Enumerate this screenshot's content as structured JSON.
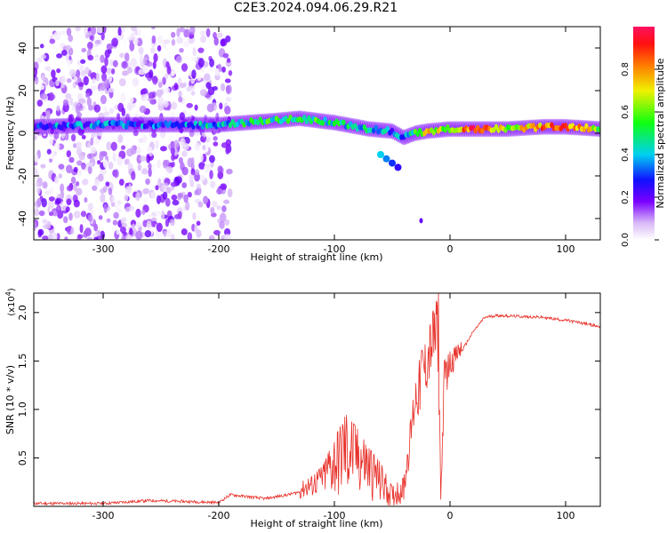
{
  "title": "C2E3.2024.094.06.29.R21",
  "chart_data": [
    {
      "type": "heatmap",
      "xlabel": "Height of straight line (km)",
      "ylabel": "Frequency (Hz)",
      "xlim": [
        -360,
        130
      ],
      "ylim": [
        -50,
        50
      ],
      "x_ticks": [
        -300,
        -200,
        -100,
        0,
        100
      ],
      "y_ticks": [
        -40,
        -20,
        0,
        20,
        40
      ],
      "colorbar": {
        "label": "Normalized spectral amplitude",
        "range": [
          0,
          1
        ],
        "ticks": [
          "0.0",
          "0.2",
          "0.4",
          "0.6",
          "0.8"
        ],
        "tick_values": [
          0,
          0.2,
          0.4,
          0.6,
          0.8
        ]
      },
      "main_band": {
        "x": [
          -360,
          -300,
          -250,
          -200,
          -150,
          -130,
          -100,
          -70,
          -50,
          -40,
          -30,
          -20,
          0,
          20,
          50,
          80,
          100,
          130
        ],
        "frequency": [
          3,
          4,
          4,
          4,
          6,
          7,
          5,
          2,
          1,
          -2,
          0,
          1,
          2,
          2,
          2,
          3,
          3,
          2
        ],
        "amplitude": [
          0.3,
          0.35,
          0.3,
          0.4,
          0.5,
          0.55,
          0.45,
          0.4,
          0.35,
          0.3,
          0.5,
          0.7,
          0.6,
          0.9,
          0.65,
          0.8,
          0.85,
          0.6
        ]
      },
      "secondary_branch": {
        "x": [
          -60,
          -55,
          -50,
          -45
        ],
        "frequency": [
          -10,
          -12,
          -14,
          -16
        ],
        "amplitude": [
          0.4,
          0.35,
          0.3,
          0.25
        ]
      },
      "outlier_points": [
        {
          "x": -25,
          "frequency": -41,
          "amplitude": 0.2
        }
      ],
      "noise_region": {
        "x": [
          -360,
          -190
        ],
        "frequency": [
          -50,
          50
        ],
        "amplitude_max": 0.2
      }
    },
    {
      "type": "line",
      "xlabel": "Height of straight line (km)",
      "ylabel": "SNR (10 * v/v)",
      "y_scale_label": "(x10",
      "y_scale_exp": "4",
      "y_scale_close": ")",
      "xlim": [
        -360,
        130
      ],
      "ylim": [
        0,
        2.2
      ],
      "x_ticks": [
        -300,
        -200,
        -100,
        0,
        100
      ],
      "y_ticks": [
        0.5,
        1.0,
        1.5,
        2.0
      ],
      "series": [
        {
          "color": "#e8312a",
          "x": [
            -360,
            -300,
            -260,
            -200,
            -190,
            -160,
            -140,
            -120,
            -110,
            -100,
            -90,
            -80,
            -70,
            -60,
            -50,
            -40,
            -30,
            -25,
            -20,
            -15,
            -10,
            -8,
            -5,
            0,
            10,
            20,
            30,
            40,
            60,
            80,
            100,
            110,
            120,
            130
          ],
          "y": [
            0.03,
            0.03,
            0.06,
            0.04,
            0.12,
            0.08,
            0.12,
            0.18,
            0.25,
            0.35,
            0.45,
            0.42,
            0.3,
            0.2,
            0.08,
            0.15,
            1.05,
            1.2,
            1.4,
            1.6,
            1.65,
            0.05,
            1.25,
            1.45,
            1.6,
            1.8,
            1.95,
            1.97,
            1.96,
            1.95,
            1.92,
            1.9,
            1.88,
            1.85
          ],
          "envelope": [
            0.05,
            0.05,
            0.1,
            0.05,
            0.2,
            0.12,
            0.2,
            0.3,
            0.42,
            0.7,
            0.95,
            0.8,
            0.6,
            0.45,
            0.2,
            0.3,
            1.3,
            1.6,
            1.7,
            2.0,
            2.2,
            0.1,
            1.5,
            1.6,
            1.7,
            1.9,
            1.98,
            1.99,
            1.98,
            1.97,
            1.95,
            1.92,
            1.9,
            1.88
          ]
        }
      ]
    }
  ]
}
